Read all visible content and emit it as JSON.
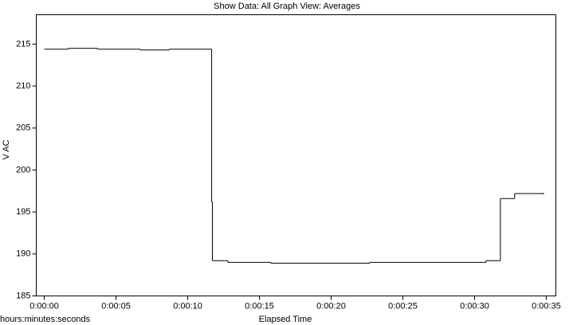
{
  "chart_data": {
    "type": "line",
    "step": "post",
    "title": "Show Data: All   Graph View: Averages",
    "x_label": "Elapsed Time",
    "x_unit_label": "hours:minutes:seconds",
    "y_label": "V AC",
    "color": "#000000",
    "x": [
      0,
      1.7,
      3.7,
      6.7,
      8.7,
      11.67,
      11.72,
      12.8,
      15.8,
      22.7,
      30.8,
      31.8,
      32.8,
      34.8
    ],
    "values": [
      214.4,
      214.5,
      214.4,
      214.3,
      214.4,
      196.2,
      189.2,
      189.0,
      188.9,
      189.0,
      189.2,
      196.6,
      197.2,
      197.2
    ],
    "xlim": [
      -0.56,
      35.67
    ],
    "xticks": [
      {
        "value": 0,
        "label": "0:00:00"
      },
      {
        "value": 5,
        "label": "0:00:05"
      },
      {
        "value": 10,
        "label": "0:00:10"
      },
      {
        "value": 15,
        "label": "0:00:15"
      },
      {
        "value": 20,
        "label": "0:00:20"
      },
      {
        "value": 25,
        "label": "0:00:25"
      },
      {
        "value": 30,
        "label": "0:00:30"
      },
      {
        "value": 35,
        "label": "0:00:35"
      }
    ],
    "ylim": [
      185,
      218.5
    ],
    "yticks": [
      185,
      190,
      195,
      200,
      205,
      210,
      215
    ],
    "grid": false
  }
}
